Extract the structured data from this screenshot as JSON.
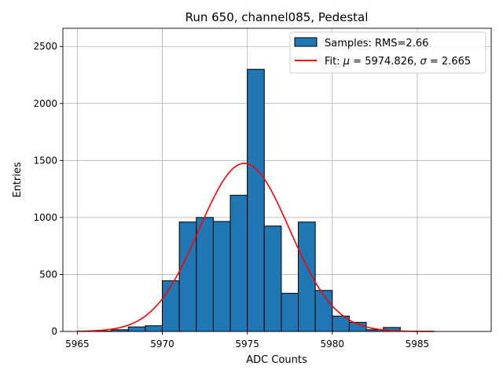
{
  "chart_data": {
    "type": "bar",
    "title": "Run 650, channel085, Pedestal",
    "xlabel": "ADC Counts",
    "ylabel": "Entries",
    "xlim": [
      5964.15,
      5989.35
    ],
    "ylim": [
      0,
      2660
    ],
    "xticks": [
      5965,
      5970,
      5975,
      5980,
      5985
    ],
    "xtick_labels": [
      "5965",
      "5970",
      "5975",
      "5980",
      "5985"
    ],
    "yticks": [
      0,
      500,
      1000,
      1500,
      2000,
      2500
    ],
    "ytick_labels": [
      "0",
      "500",
      "1000",
      "1500",
      "2000",
      "2500"
    ],
    "grid": true,
    "legend_position": "top-right",
    "histogram": {
      "name": "Samples: RMS=2.66",
      "color": "#1f77b4",
      "edge_color": "#000000",
      "bin_width": 1,
      "bins": [
        {
          "left": 5966,
          "count": 3
        },
        {
          "left": 5967,
          "count": 15
        },
        {
          "left": 5968,
          "count": 40
        },
        {
          "left": 5969,
          "count": 50
        },
        {
          "left": 5970,
          "count": 445
        },
        {
          "left": 5971,
          "count": 960
        },
        {
          "left": 5972,
          "count": 1000
        },
        {
          "left": 5973,
          "count": 965
        },
        {
          "left": 5974,
          "count": 1195
        },
        {
          "left": 5975,
          "count": 2300
        },
        {
          "left": 5976,
          "count": 925
        },
        {
          "left": 5977,
          "count": 335
        },
        {
          "left": 5978,
          "count": 960
        },
        {
          "left": 5979,
          "count": 360
        },
        {
          "left": 5980,
          "count": 135
        },
        {
          "left": 5981,
          "count": 80
        },
        {
          "left": 5982,
          "count": 15
        },
        {
          "left": 5983,
          "count": 35
        },
        {
          "left": 5984,
          "count": 3
        }
      ]
    },
    "fit": {
      "name": "Fit: μ = 5974.826, σ = 2.665",
      "label_prefix": "Fit: ",
      "mu_symbol": "μ",
      "mu_text": " = 5974.826, ",
      "sigma_symbol": "σ",
      "sigma_text": " = 2.665",
      "color": "#ff0000",
      "mu": 5974.826,
      "sigma": 2.665,
      "amplitude": 1475,
      "x_range": [
        5965,
        5986
      ]
    }
  }
}
